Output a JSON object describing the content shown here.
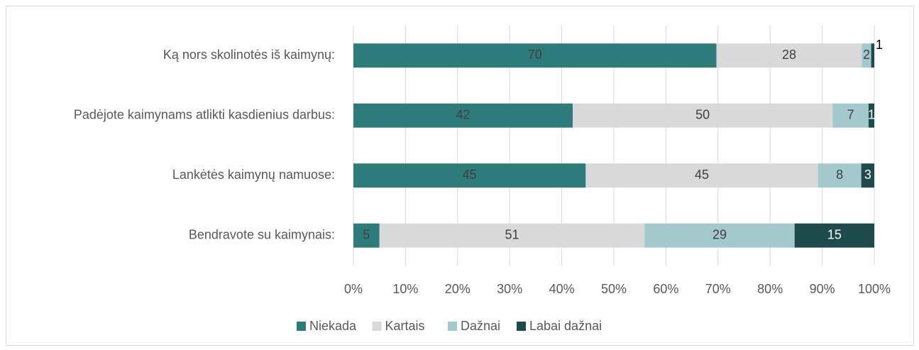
{
  "chart_data": {
    "type": "stacked-bar-horizontal",
    "categories": [
      "Ką nors skolinotės iš kaimynų:",
      "Padėjote kaimynams atlikti kasdienius darbus:",
      "Lankėtės kaimynų namuose:",
      "Bendravote su kaimynais:"
    ],
    "series": [
      {
        "name": "Niekada",
        "color": "#2e7b7b",
        "values": [
          69.7,
          42.1,
          44.6,
          5.0
        ],
        "value_labels": [
          "70",
          "42",
          "45",
          "5"
        ]
      },
      {
        "name": "Kartais",
        "color": "#d9d9d9",
        "values": [
          27.9,
          49.9,
          44.6,
          50.9
        ],
        "value_labels": [
          "28",
          "50",
          "45",
          "51"
        ]
      },
      {
        "name": "Dažnai",
        "color": "#a3c9cc",
        "values": [
          1.8,
          6.9,
          8.3,
          28.8
        ],
        "value_labels": [
          "2",
          "7",
          "8",
          "29"
        ]
      },
      {
        "name": "Labai dažnai",
        "color": "#1d4a4a",
        "values": [
          0.6,
          1.1,
          2.5,
          15.3
        ],
        "value_labels": [
          "1",
          "1",
          "3",
          "15"
        ]
      }
    ],
    "xlim": [
      0,
      100
    ],
    "xticks": [
      {
        "value": 0,
        "label": "0%"
      },
      {
        "value": 10,
        "label": "10%"
      },
      {
        "value": 20,
        "label": "20%"
      },
      {
        "value": 30,
        "label": "30%"
      },
      {
        "value": 40,
        "label": "40%"
      },
      {
        "value": 50,
        "label": "50%"
      },
      {
        "value": 60,
        "label": "60%"
      },
      {
        "value": 70,
        "label": "70%"
      },
      {
        "value": 80,
        "label": "80%"
      },
      {
        "value": 90,
        "label": "90%"
      },
      {
        "value": 100,
        "label": "100%"
      }
    ],
    "grid": true,
    "legend": "bottom"
  }
}
